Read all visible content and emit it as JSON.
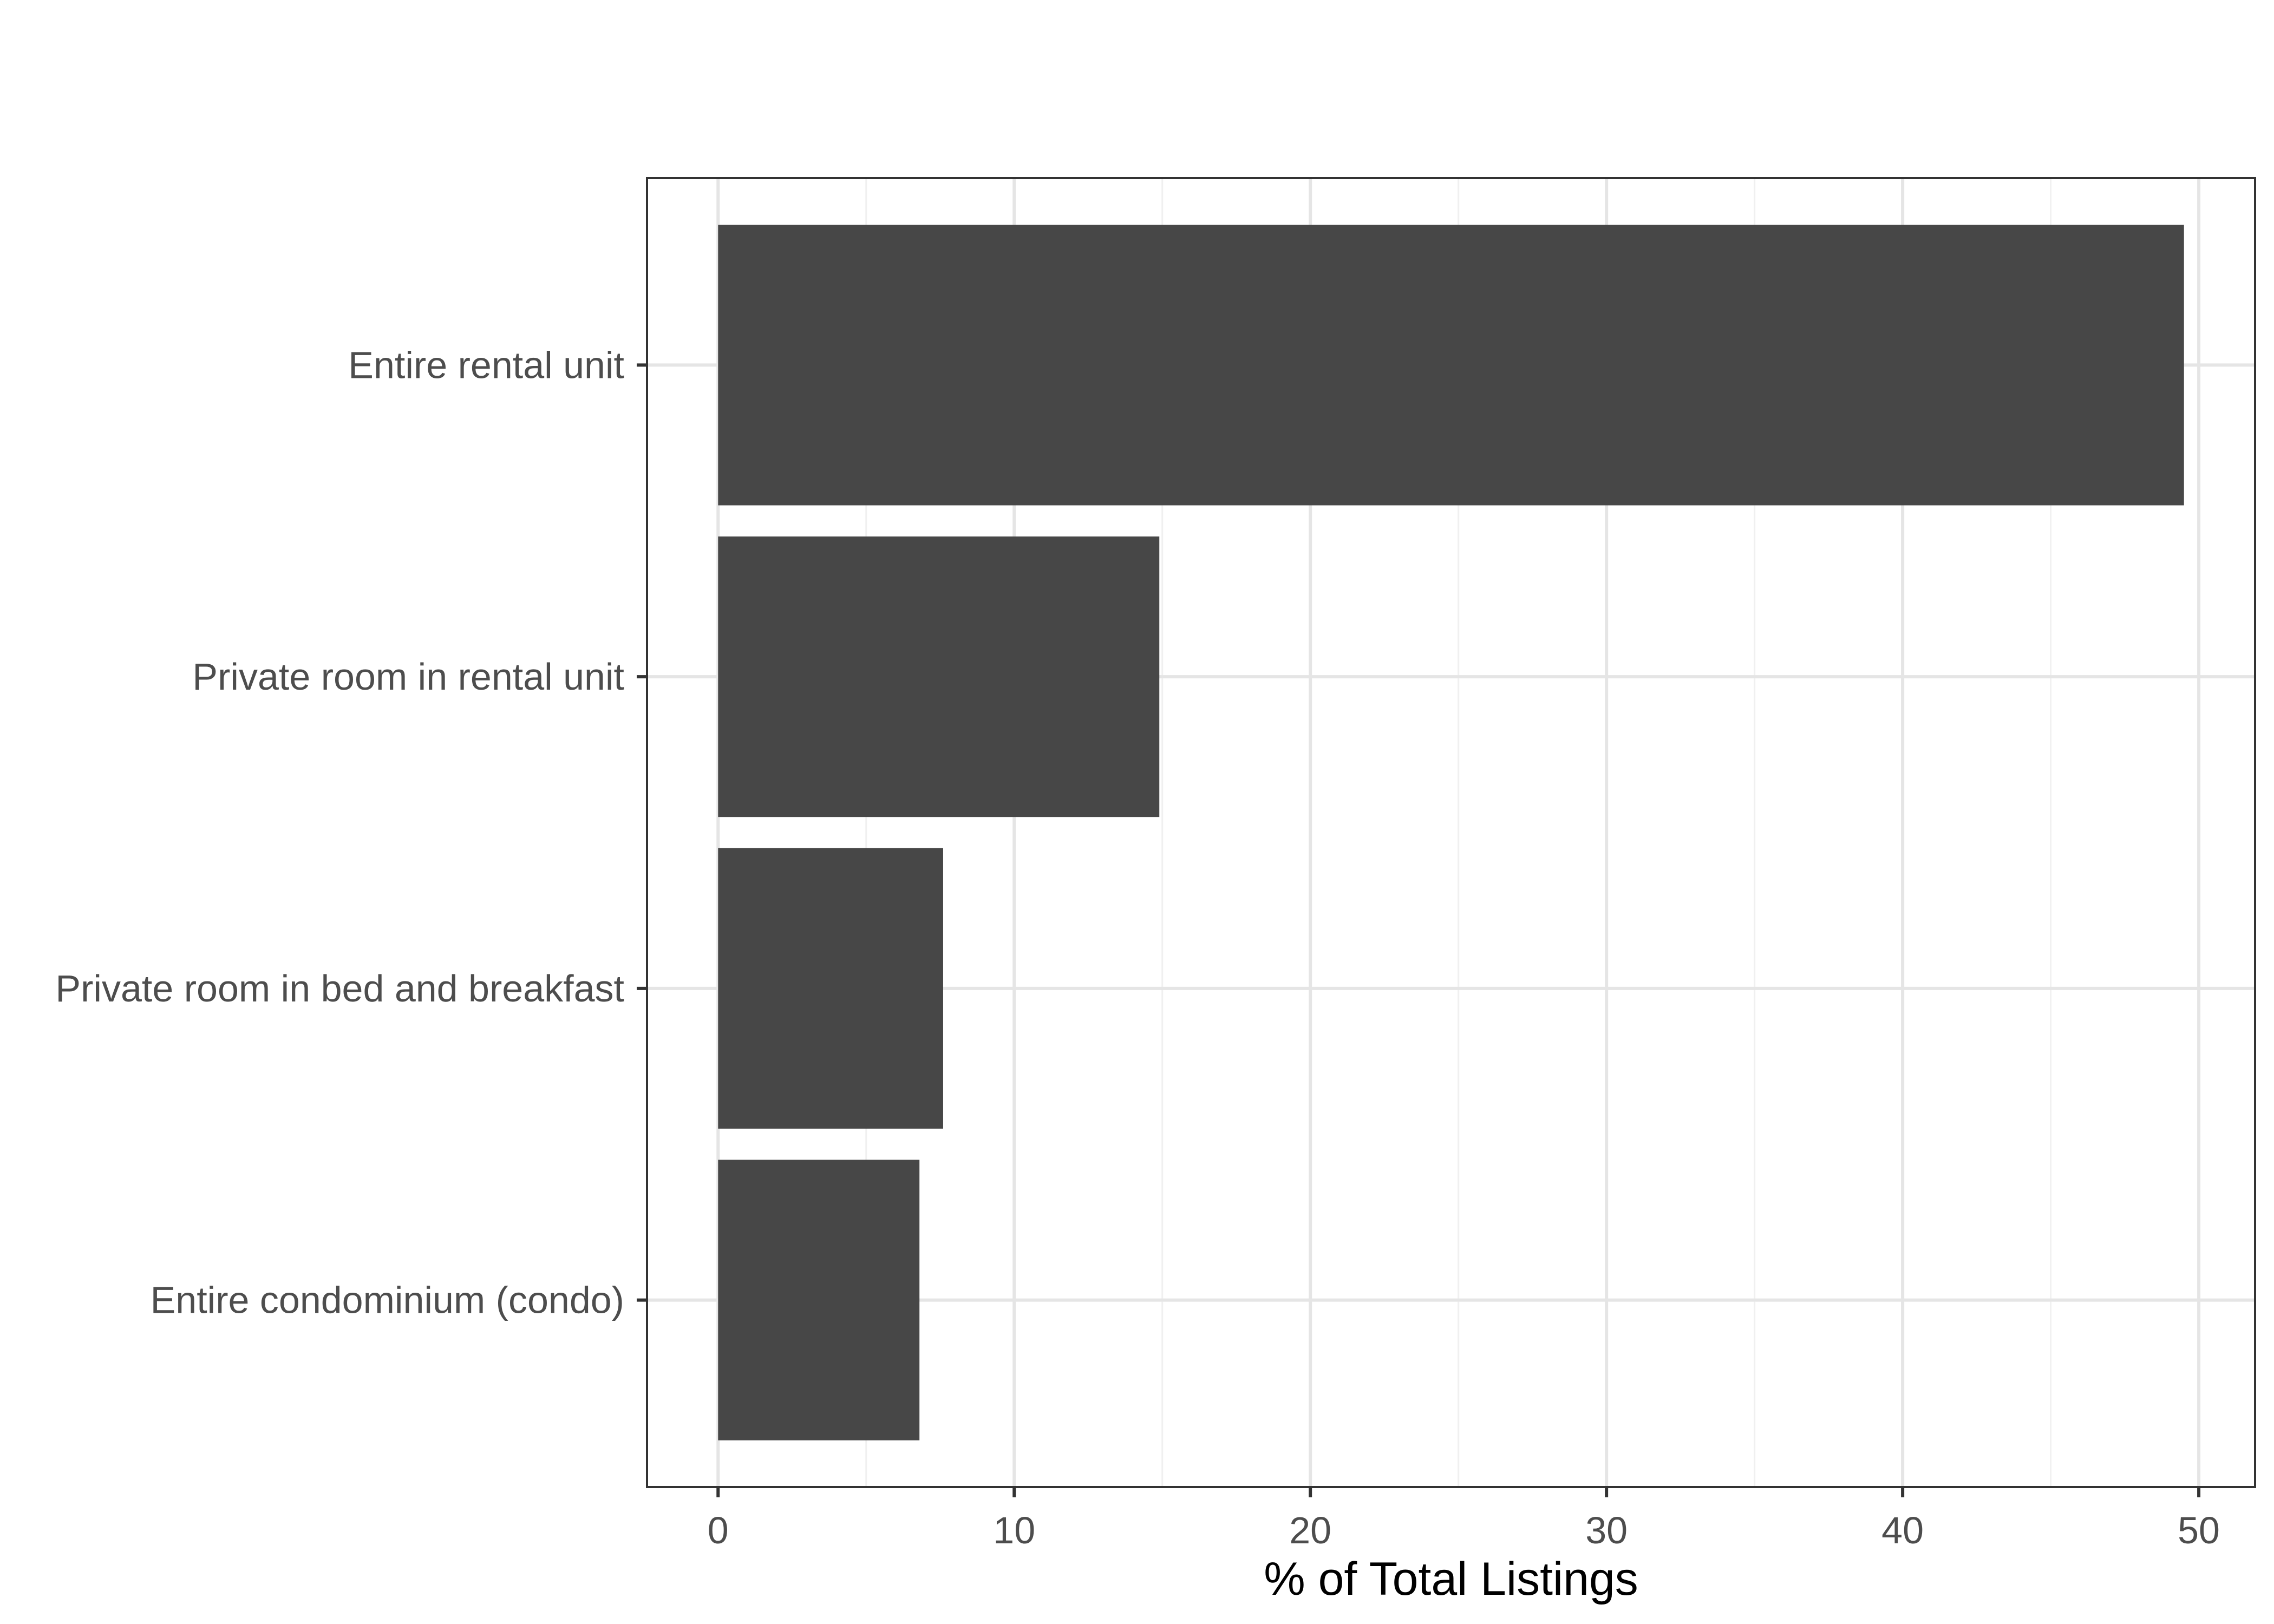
{
  "chart_data": {
    "type": "bar",
    "orientation": "horizontal",
    "categories": [
      "Entire rental unit",
      "Private room in rental unit",
      "Private room in bed and breakfast",
      "Entire condominium (condo)"
    ],
    "values": [
      49.5,
      14.9,
      7.6,
      6.8
    ],
    "title": "",
    "xlabel": "% of Total Listings",
    "ylabel": "",
    "xlim": [
      -2.4,
      51.9
    ],
    "xticks": [
      0,
      10,
      20,
      30,
      40,
      50
    ],
    "grid": true,
    "legend": "none",
    "colors": {
      "bar": "#474747",
      "panel_border": "#333333",
      "grid_major": "#e5e5e5",
      "grid_minor": "#f0f0f0",
      "tick_text": "#4d4d4d"
    }
  }
}
